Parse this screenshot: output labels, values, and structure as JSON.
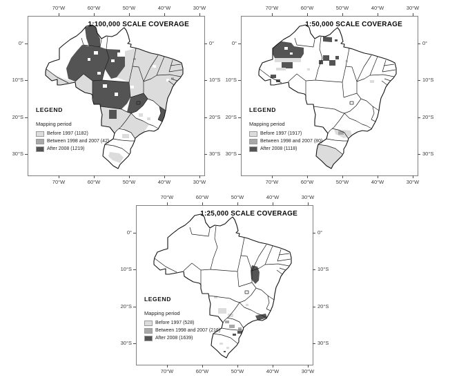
{
  "figure_background": "#ffffff",
  "colors": {
    "before_1997": "#dcdcdc",
    "between_1998_2007": "#a8a8a8",
    "after_2008": "#545454",
    "state_border": "#1c1c1c",
    "country_border": "#111111",
    "frame_border": "#7e7e7e"
  },
  "panels": [
    {
      "title": "1:100,000 SCALE COVERAGE",
      "legend": {
        "heading": "LEGEND",
        "subheading": "Mapping period",
        "items": [
          {
            "label": "Before 1997 (1182)",
            "period": "Before 1997",
            "count": 1182,
            "color": "#dcdcdc"
          },
          {
            "label": "Between 1998 and 2007 (42)",
            "period": "Between 1998 and 2007",
            "count": 42,
            "color": "#a8a8a8"
          },
          {
            "label": "After 2008 (1219)",
            "period": "After 2008",
            "count": 1219,
            "color": "#545454"
          }
        ]
      },
      "axes": {
        "lon": [
          "70°W",
          "60°W",
          "50°W",
          "40°W",
          "30°W"
        ],
        "lat": [
          "0°",
          "10°S",
          "20°S",
          "30°S"
        ]
      }
    },
    {
      "title": "1:50,000 SCALE COVERAGE",
      "legend": {
        "heading": "LEGEND",
        "subheading": "Mapping period",
        "items": [
          {
            "label": "Before 1997 (1917)",
            "period": "Before 1997",
            "count": 1917,
            "color": "#dcdcdc"
          },
          {
            "label": "Between 1998 and 2007 (80)",
            "period": "Between 1998 and 2007",
            "count": 80,
            "color": "#a8a8a8"
          },
          {
            "label": "After 2008 (1118)",
            "period": "After 2008",
            "count": 1118,
            "color": "#545454"
          }
        ]
      },
      "axes": {
        "lon": [
          "70°W",
          "60°W",
          "50°W",
          "40°W",
          "30°W"
        ],
        "lat": [
          "0°",
          "10°S",
          "20°S",
          "30°S"
        ]
      }
    },
    {
      "title": "1:25,000 SCALE COVERAGE",
      "legend": {
        "heading": "LEGEND",
        "subheading": "Mapping period",
        "items": [
          {
            "label": "Before 1997 (528)",
            "period": "Before 1997",
            "count": 528,
            "color": "#dcdcdc"
          },
          {
            "label": "Between 1998 and 2007 (216)",
            "period": "Between 1998 and 2007",
            "count": 216,
            "color": "#a8a8a8"
          },
          {
            "label": "After 2008 (1639)",
            "period": "After 2008",
            "count": 1639,
            "color": "#545454"
          }
        ]
      },
      "axes": {
        "lon": [
          "70°W",
          "60°W",
          "50°W",
          "40°W",
          "30°W"
        ],
        "lat": [
          "0°",
          "10°S",
          "20°S",
          "30°S"
        ]
      }
    }
  ]
}
